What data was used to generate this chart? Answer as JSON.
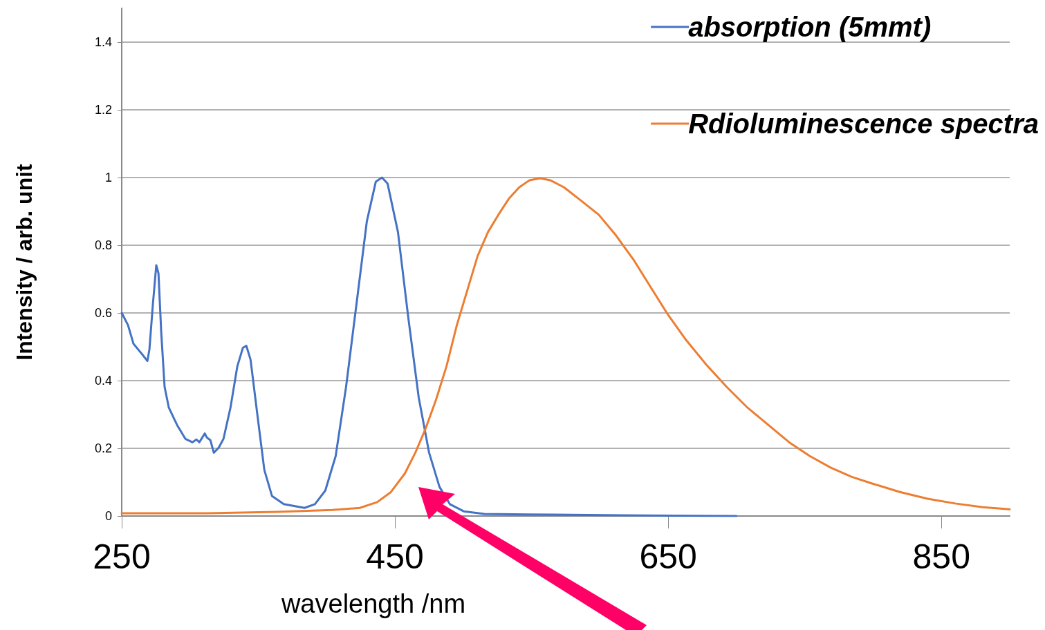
{
  "chart_data": {
    "type": "line",
    "xlabel": "wavelength /nm",
    "ylabel": "Intensity / arb. unit",
    "xlim": [
      250,
      900
    ],
    "xticks": [
      250,
      450,
      650,
      850
    ],
    "ylim": [
      0,
      1.5
    ],
    "yticks": [
      0,
      0.2,
      0.4,
      0.6,
      0.8,
      1,
      1.2,
      1.4
    ],
    "grid": "y",
    "legend": "top right",
    "marker": "none",
    "line_style": "solid",
    "series": [
      {
        "name": "absorption (5mmt)",
        "color": "#4472c4",
        "x": [
          250,
          254.6,
          258.6,
          264.7,
          268.8,
          270.3,
          272.8,
          275.3,
          276.9,
          278.9,
          281.4,
          284.5,
          290.5,
          296.6,
          301.7,
          304.7,
          306.8,
          309.3,
          310.8,
          312.3,
          314.9,
          317.4,
          321,
          324.5,
          329.6,
          334.6,
          338.7,
          341.2,
          344.3,
          349.3,
          354.4,
          360,
          368.6,
          383.8,
          391.4,
          399,
          406.6,
          414.2,
          421.8,
          429.4,
          436,
          440.5,
          444.6,
          452.2,
          459.8,
          467.4,
          475,
          482.6,
          490.2,
          500.3,
          515.5,
          566,
          617,
          700
        ],
        "values": [
          0.6,
          0.564,
          0.509,
          0.479,
          0.458,
          0.493,
          0.625,
          0.741,
          0.717,
          0.544,
          0.381,
          0.32,
          0.269,
          0.228,
          0.218,
          0.226,
          0.218,
          0.234,
          0.244,
          0.232,
          0.224,
          0.187,
          0.202,
          0.228,
          0.32,
          0.442,
          0.497,
          0.503,
          0.462,
          0.299,
          0.136,
          0.059,
          0.035,
          0.024,
          0.035,
          0.075,
          0.177,
          0.381,
          0.625,
          0.87,
          0.988,
          1,
          0.982,
          0.839,
          0.585,
          0.35,
          0.187,
          0.086,
          0.035,
          0.014,
          0.006,
          0.004,
          0.002,
          0
        ]
      },
      {
        "name": "Rdioluminescence spectra",
        "color": "#ed7d31",
        "x": [
          250,
          312.8,
          363.5,
          404,
          424.3,
          437,
          447.1,
          457.3,
          464.9,
          472.5,
          480.1,
          487.7,
          495.3,
          502.9,
          510.5,
          518.1,
          525.7,
          533.3,
          540.9,
          548.5,
          556.1,
          563.7,
          573.8,
          586.5,
          599.2,
          611.8,
          624.5,
          637.2,
          649.8,
          662.5,
          677.7,
          692.9,
          708.1,
          723.3,
          738.5,
          753.7,
          768.9,
          784.1,
          799.3,
          819.6,
          839.9,
          860.1,
          880.4,
          900
        ],
        "values": [
          0.008,
          0.008,
          0.012,
          0.018,
          0.024,
          0.041,
          0.071,
          0.126,
          0.187,
          0.259,
          0.344,
          0.442,
          0.564,
          0.666,
          0.768,
          0.839,
          0.89,
          0.937,
          0.971,
          0.992,
          0.998,
          0.992,
          0.971,
          0.931,
          0.89,
          0.829,
          0.758,
          0.676,
          0.595,
          0.523,
          0.448,
          0.381,
          0.32,
          0.269,
          0.218,
          0.177,
          0.143,
          0.116,
          0.096,
          0.071,
          0.051,
          0.037,
          0.026,
          0.02
        ]
      }
    ]
  }
}
